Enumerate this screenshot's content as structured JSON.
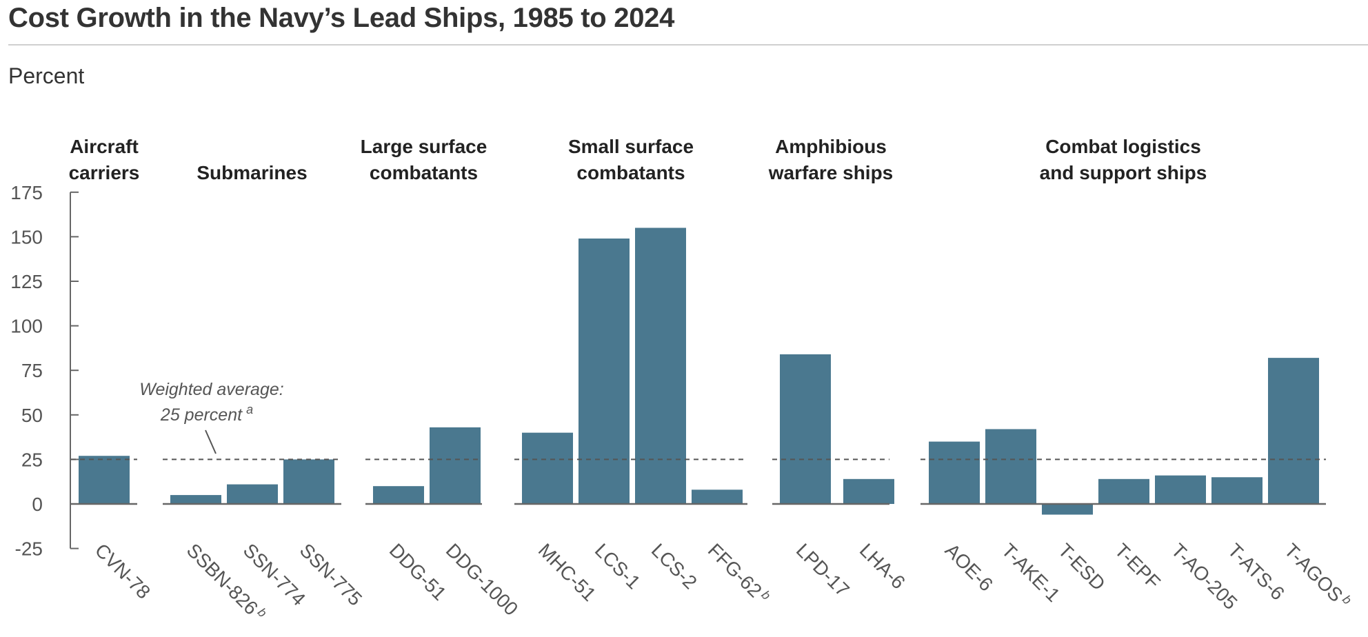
{
  "header": {
    "title": "Cost Growth in the Navy’s Lead Ships, 1985 to 2024",
    "unit_label": "Percent"
  },
  "chart_data": {
    "type": "bar",
    "title": "Cost Growth in the Navy’s Lead Ships, 1985 to 2024",
    "xlabel": "",
    "ylabel": "Percent",
    "ylim": [
      -25,
      175
    ],
    "yticks": [
      175,
      150,
      125,
      100,
      75,
      50,
      25,
      0,
      -25
    ],
    "grid": false,
    "bar_color": "#4a788f",
    "reference_line": {
      "value": 25,
      "style": "dashed",
      "label_line1": "Weighted average:",
      "label_line2": "25 percent",
      "label_footnote": "a"
    },
    "groups": [
      {
        "name": "Aircraft carriers",
        "label_lines": [
          "Aircraft",
          "carriers"
        ],
        "categories": [
          {
            "label": "CVN-78",
            "value": 27,
            "footnote": ""
          }
        ]
      },
      {
        "name": "Submarines",
        "label_lines": [
          "Submarines"
        ],
        "categories": [
          {
            "label": "SSBN-826",
            "value": 5,
            "footnote": "b"
          },
          {
            "label": "SSN-774",
            "value": 11,
            "footnote": ""
          },
          {
            "label": "SSN-775",
            "value": 25,
            "footnote": ""
          }
        ]
      },
      {
        "name": "Large surface combatants",
        "label_lines": [
          "Large surface",
          "combatants"
        ],
        "categories": [
          {
            "label": "DDG-51",
            "value": 10,
            "footnote": ""
          },
          {
            "label": "DDG-1000",
            "value": 43,
            "footnote": ""
          }
        ]
      },
      {
        "name": "Small surface combatants",
        "label_lines": [
          "Small surface",
          "combatants"
        ],
        "categories": [
          {
            "label": "MHC-51",
            "value": 40,
            "footnote": ""
          },
          {
            "label": "LCS-1",
            "value": 149,
            "footnote": ""
          },
          {
            "label": "LCS-2",
            "value": 155,
            "footnote": ""
          },
          {
            "label": "FFG-62",
            "value": 8,
            "footnote": "b"
          }
        ]
      },
      {
        "name": "Amphibious warfare ships",
        "label_lines": [
          "Amphibious",
          "warfare ships"
        ],
        "categories": [
          {
            "label": "LPD-17",
            "value": 84,
            "footnote": ""
          },
          {
            "label": "LHA-6",
            "value": 14,
            "footnote": ""
          }
        ]
      },
      {
        "name": "Combat logistics and support ships",
        "label_lines": [
          "Combat logistics",
          "and support ships"
        ],
        "categories": [
          {
            "label": "AOE-6",
            "value": 35,
            "footnote": ""
          },
          {
            "label": "T-AKE-1",
            "value": 42,
            "footnote": ""
          },
          {
            "label": "T-ESD",
            "value": -6,
            "footnote": ""
          },
          {
            "label": "T-EPF",
            "value": 14,
            "footnote": ""
          },
          {
            "label": "T-AO-205",
            "value": 16,
            "footnote": ""
          },
          {
            "label": "T-ATS-6",
            "value": 15,
            "footnote": ""
          },
          {
            "label": "T-AGOS",
            "value": 82,
            "footnote": "b"
          }
        ]
      }
    ]
  }
}
